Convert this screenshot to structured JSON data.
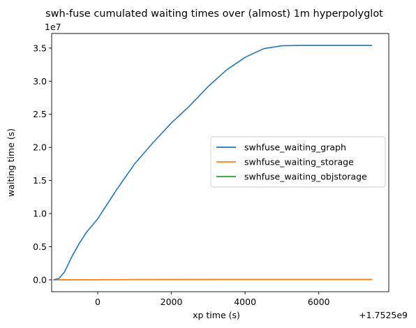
{
  "chart_data": {
    "type": "line",
    "title": "swh-fuse cumulated waiting times over (almost) 1m hyperpolyglot",
    "xlabel": "xp time (s)",
    "ylabel": "waiting time (s)",
    "x_offset_label": "+1.7525e9",
    "y_scale_label": "1e7",
    "xlim": [
      -1250,
      7900
    ],
    "ylim": [
      -0.18,
      3.72
    ],
    "x_ticks": [
      0,
      2000,
      4000,
      6000
    ],
    "x_tick_labels": [
      "0",
      "2000",
      "4000",
      "6000"
    ],
    "y_ticks": [
      0.0,
      0.5,
      1.0,
      1.5,
      2.0,
      2.5,
      3.0,
      3.5
    ],
    "y_tick_labels": [
      "0.0",
      "0.5",
      "1.0",
      "1.5",
      "2.0",
      "2.5",
      "3.0",
      "3.5"
    ],
    "legend_position": "center-right",
    "grid": false,
    "series": [
      {
        "name": "swhfuse_waiting_graph",
        "color": "#1f77b4",
        "x": [
          -1200,
          -1050,
          -900,
          -700,
          -500,
          -300,
          0,
          500,
          1000,
          1500,
          2000,
          2500,
          3000,
          3500,
          4000,
          4500,
          5000,
          5500,
          6000,
          6500,
          7000,
          7450
        ],
        "y": [
          0.0,
          0.02,
          0.12,
          0.35,
          0.55,
          0.72,
          0.92,
          1.35,
          1.75,
          2.07,
          2.37,
          2.63,
          2.92,
          3.17,
          3.36,
          3.49,
          3.535,
          3.54,
          3.54,
          3.54,
          3.54,
          3.54
        ]
      },
      {
        "name": "swhfuse_waiting_storage",
        "color": "#ff7f0e",
        "x": [
          -1200,
          0,
          2000,
          4000,
          6000,
          7450
        ],
        "y": [
          0.0,
          0.001,
          0.003,
          0.005,
          0.006,
          0.006
        ]
      },
      {
        "name": "swhfuse_waiting_objstorage",
        "color": "#2ca02c",
        "x": [
          -1200,
          0,
          2000,
          4000,
          6000,
          7450
        ],
        "y": [
          0.0,
          0.001,
          0.003,
          0.005,
          0.006,
          0.006
        ]
      }
    ]
  }
}
